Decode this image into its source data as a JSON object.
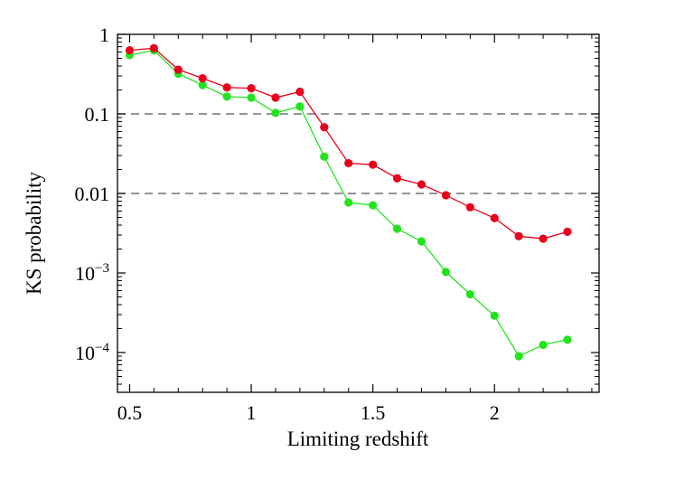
{
  "chart_data": {
    "type": "line",
    "title": "",
    "xlabel": "Limiting redshift",
    "ylabel": "KS probability",
    "xlim": [
      0.45,
      2.43
    ],
    "ylim_log10": [
      -4.5,
      0
    ],
    "yscale": "log",
    "grid": false,
    "reference_lines": [
      0.1,
      0.01
    ],
    "x_ticks": [
      {
        "value": 0.5,
        "label": "0.5"
      },
      {
        "value": 1,
        "label": "1"
      },
      {
        "value": 1.5,
        "label": "1.5"
      },
      {
        "value": 2,
        "label": "2"
      }
    ],
    "y_ticks": [
      {
        "value": 1,
        "label": "1"
      },
      {
        "value": 0.1,
        "label": "0.1"
      },
      {
        "value": 0.01,
        "label": "0.01"
      },
      {
        "value": 0.001,
        "label": "10",
        "exponent": "−3"
      },
      {
        "value": 0.0001,
        "label": "10",
        "exponent": "−4"
      }
    ],
    "x": [
      0.5,
      0.6,
      0.7,
      0.8,
      0.9,
      1.0,
      1.1,
      1.2,
      1.3,
      1.4,
      1.5,
      1.6,
      1.7,
      1.8,
      1.9,
      2.0,
      2.1,
      2.2,
      2.3
    ],
    "series": [
      {
        "name": "red",
        "color": "#e8001c",
        "values": [
          0.63,
          0.67,
          0.36,
          0.28,
          0.215,
          0.21,
          0.16,
          0.19,
          0.068,
          0.024,
          0.023,
          0.0155,
          0.013,
          0.0095,
          0.0067,
          0.0049,
          0.0029,
          0.0027,
          0.0033
        ]
      },
      {
        "name": "green",
        "color": "#22e31e",
        "values": [
          0.55,
          0.63,
          0.32,
          0.23,
          0.165,
          0.16,
          0.103,
          0.124,
          0.029,
          0.0077,
          0.0071,
          0.0036,
          0.0025,
          0.00103,
          0.00054,
          0.00029,
          9e-05,
          0.000125,
          0.000145
        ]
      }
    ]
  }
}
